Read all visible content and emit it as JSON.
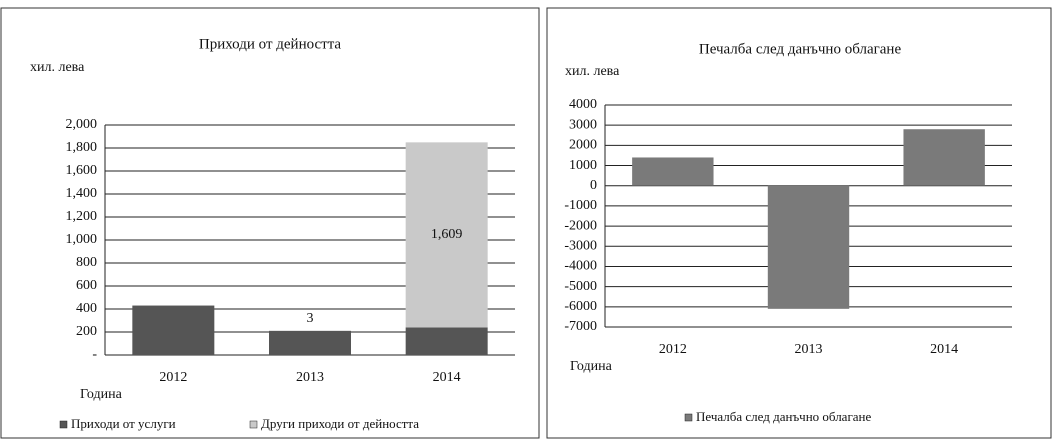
{
  "chart_data": [
    {
      "type": "bar",
      "stacked": true,
      "title": "Приходи от дейността",
      "y_label": "хил. лева",
      "x_label": "Година",
      "categories": [
        "2012",
        "2013",
        "2014"
      ],
      "series": [
        {
          "name": "Приходи от услуги",
          "color": "#555555",
          "values": [
            430,
            210,
            240
          ]
        },
        {
          "name": "Други приходи от дейността",
          "color": "#c9c9c9",
          "values": [
            0,
            3,
            1609
          ],
          "value_labels": [
            null,
            "3",
            "1,609"
          ]
        }
      ],
      "ylim": [
        0,
        2000
      ],
      "yticks": [
        {
          "value": 0,
          "label": "-"
        },
        200,
        400,
        600,
        800,
        {
          "value": 1000,
          "label": "1,000"
        },
        {
          "value": 1200,
          "label": "1,200"
        },
        {
          "value": 1400,
          "label": "1,400"
        },
        {
          "value": 1600,
          "label": "1,600"
        },
        {
          "value": 1800,
          "label": "1,800"
        },
        {
          "value": 2000,
          "label": "2,000"
        }
      ],
      "grid": true,
      "legend": "bottom"
    },
    {
      "type": "bar",
      "title": "Печалба след данъчно облагане",
      "y_label": "хил. лева",
      "x_label": "Година",
      "categories": [
        "2012",
        "2013",
        "2014"
      ],
      "series": [
        {
          "name": "Печалба след данъчно облагане",
          "color": "#7a7a7a",
          "values": [
            1400,
            -6100,
            2800
          ]
        }
      ],
      "ylim": [
        -7000,
        4000
      ],
      "yticks": [
        -7000,
        -6000,
        -5000,
        -4000,
        -3000,
        -2000,
        -1000,
        0,
        1000,
        2000,
        3000,
        4000
      ],
      "grid": true,
      "legend": "bottom"
    }
  ]
}
